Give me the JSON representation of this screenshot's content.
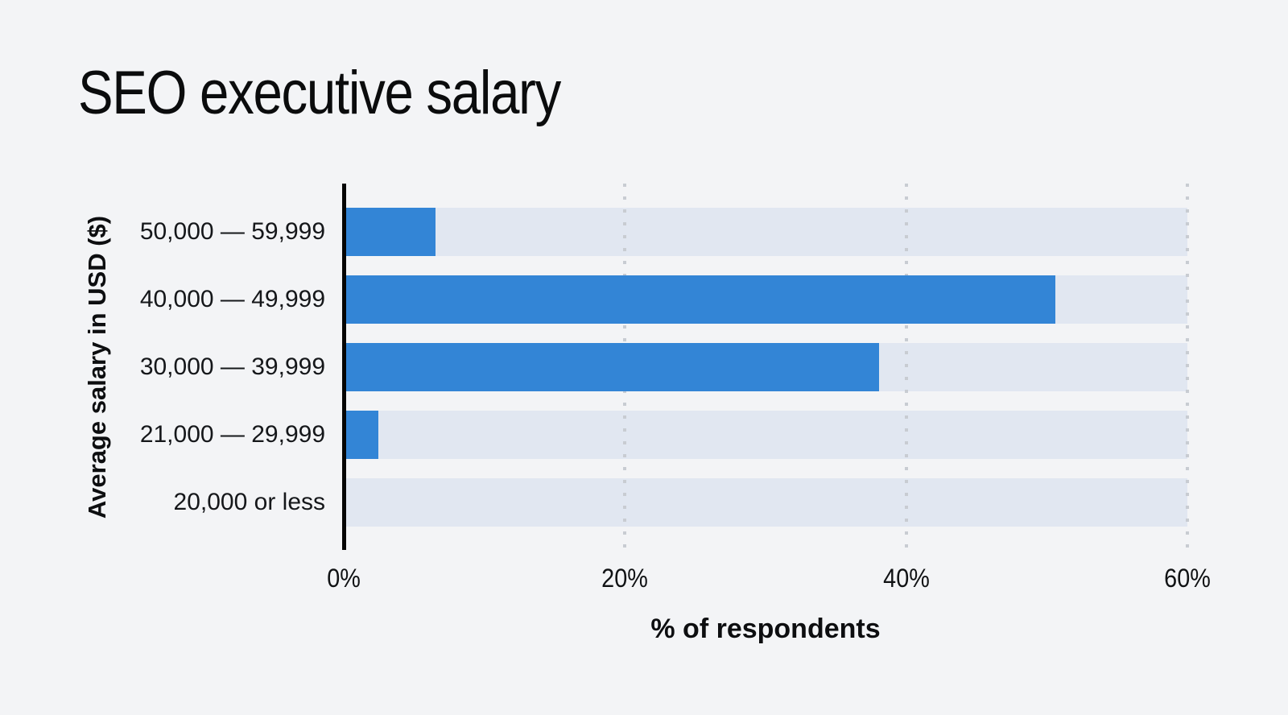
{
  "title": "SEO executive salary",
  "chart_data": {
    "type": "bar",
    "orientation": "horizontal",
    "title": "SEO executive salary",
    "xlabel": "% of respondents",
    "ylabel": "Average salary in USD ($)",
    "categories": [
      "50,000 — 59,999",
      "40,000 — 49,999",
      "30,000 — 39,999",
      "21,000 — 29,999",
      "20,000 or less"
    ],
    "values": [
      6.4,
      50.6,
      38.0,
      2.3,
      0
    ],
    "xlim": [
      0,
      60
    ],
    "xticks": [
      0,
      20,
      40,
      60
    ],
    "xtick_labels": [
      "0%",
      "20%",
      "40%",
      "60%"
    ],
    "grid": "vertical dotted lines at 20/40/60, behind bars",
    "legend": "none",
    "colors": {
      "bar": "#3385D6",
      "bar_track": "#E1E7F1",
      "background": "#F3F4F6",
      "axis_line": "#050505",
      "grid_dot": "#C8CCD2",
      "text": "#101214"
    }
  }
}
